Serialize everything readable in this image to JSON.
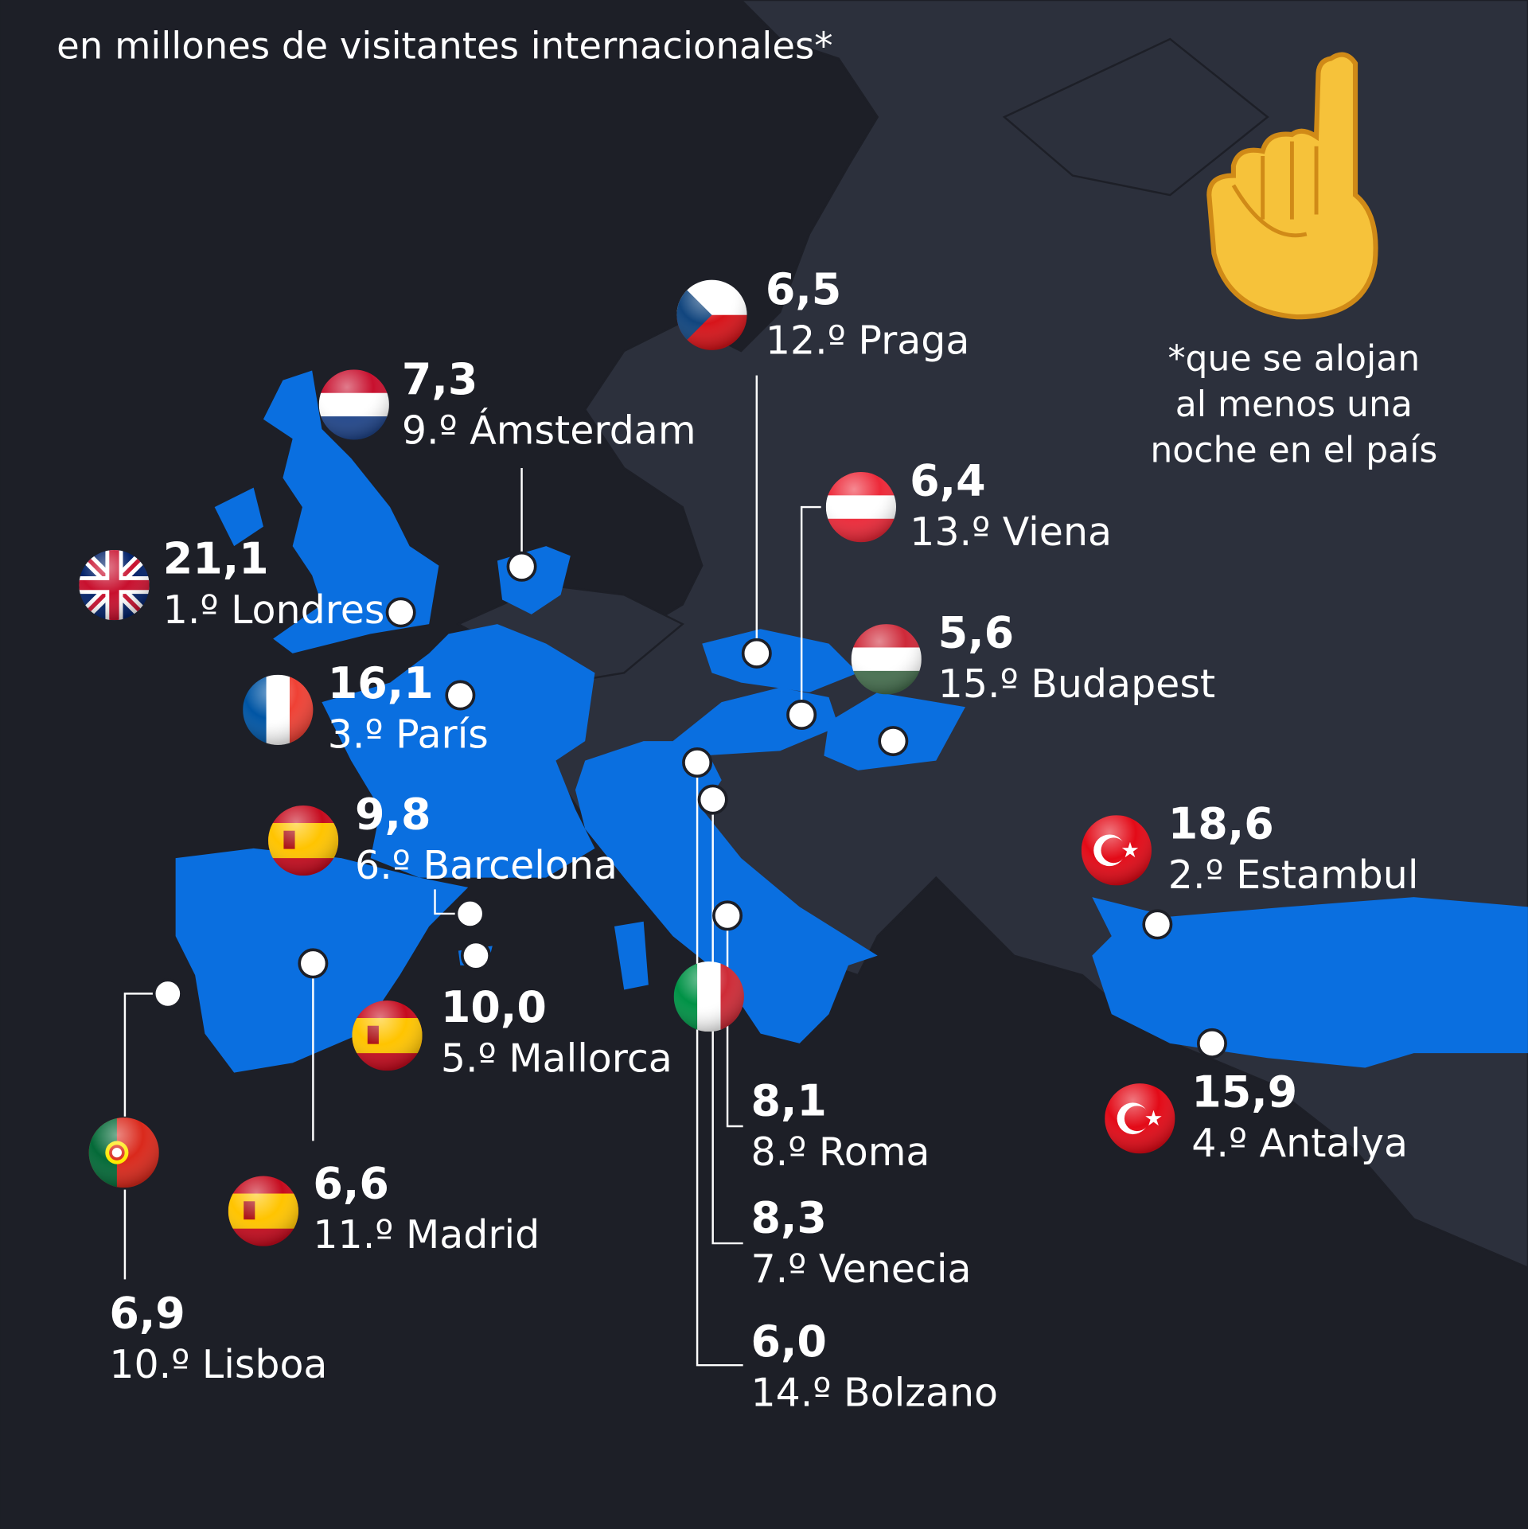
{
  "subtitle": "en millones de visitantes internacionales*",
  "footnote": [
    "*que se alojan",
    "al menos una",
    "noche en el país"
  ],
  "icons": {
    "hand": "index-pointing-up-icon"
  },
  "colors": {
    "background": "#1d1f27",
    "land": "#2c303c",
    "highlight": "#0a6fe0",
    "text": "#ffffff"
  },
  "chart_data": {
    "type": "map",
    "title": "",
    "subtitle": "en millones de visitantes internacionales*",
    "unit": "millones de visitantes internacionales",
    "entries": [
      {
        "rank": "1.º",
        "city": "Londres",
        "value": "21,1",
        "country": "gb"
      },
      {
        "rank": "2.º",
        "city": "Estambul",
        "value": "18,6",
        "country": "tr"
      },
      {
        "rank": "3.º",
        "city": "París",
        "value": "16,1",
        "country": "fr"
      },
      {
        "rank": "4.º",
        "city": "Antalya",
        "value": "15,9",
        "country": "tr"
      },
      {
        "rank": "5.º",
        "city": "Mallorca",
        "value": "10,0",
        "country": "es"
      },
      {
        "rank": "6.º",
        "city": "Barcelona",
        "value": "9,8",
        "country": "es"
      },
      {
        "rank": "7.º",
        "city": "Venecia",
        "value": "8,3",
        "country": "it"
      },
      {
        "rank": "8.º",
        "city": "Roma",
        "value": "8,1",
        "country": "it"
      },
      {
        "rank": "9.º",
        "city": "Ámsterdam",
        "value": "7,3",
        "country": "nl"
      },
      {
        "rank": "10.º",
        "city": "Lisboa",
        "value": "6,9",
        "country": "pt"
      },
      {
        "rank": "11.º",
        "city": "Madrid",
        "value": "6,6",
        "country": "es"
      },
      {
        "rank": "12.º",
        "city": "Praga",
        "value": "6,5",
        "country": "cz"
      },
      {
        "rank": "13.º",
        "city": "Viena",
        "value": "6,4",
        "country": "at"
      },
      {
        "rank": "14.º",
        "city": "Bolzano",
        "value": "6,0",
        "country": "it"
      },
      {
        "rank": "15.º",
        "city": "Budapest",
        "value": "5,6",
        "country": "hu"
      }
    ]
  }
}
